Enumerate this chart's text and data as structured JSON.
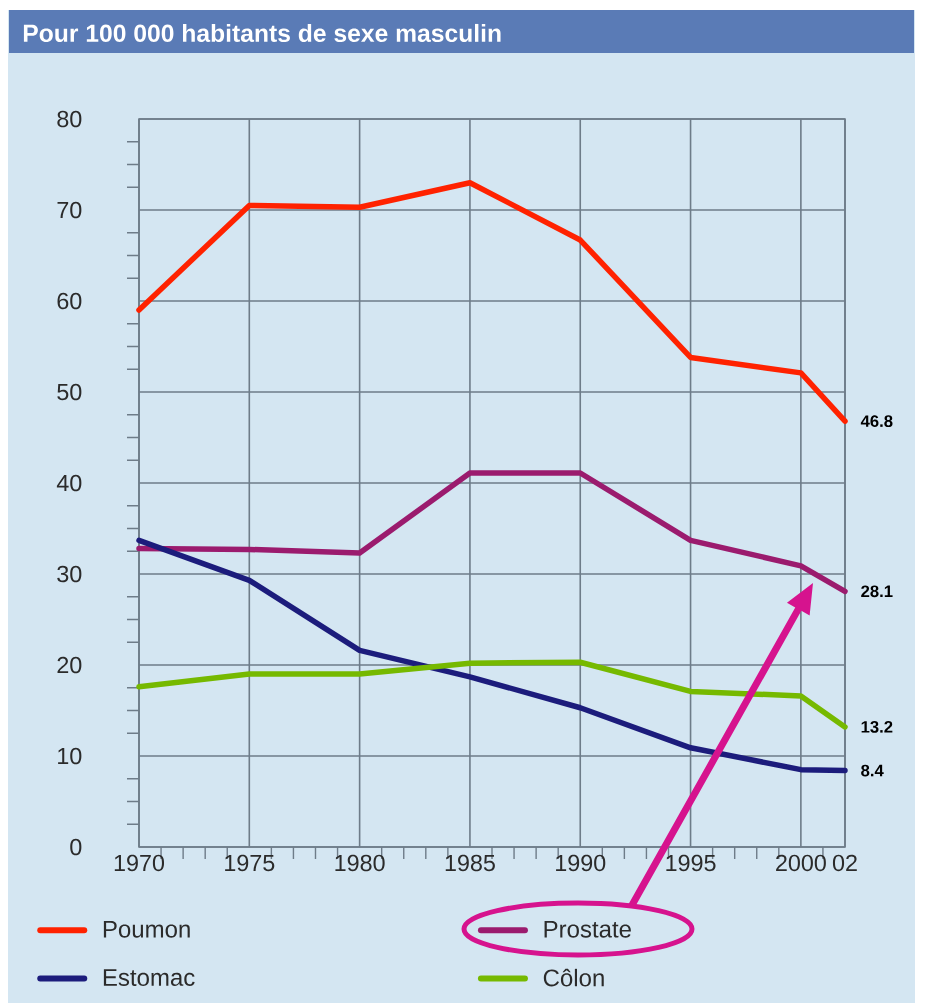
{
  "chart_data": {
    "type": "line",
    "title": "Pour 100 000 habitants de sexe masculin",
    "x": [
      1970,
      1975,
      1980,
      1985,
      1990,
      1995,
      2000,
      2002
    ],
    "series": [
      {
        "name": "Poumon",
        "color": "#ff2200",
        "values": [
          59,
          70.5,
          70.3,
          73,
          66.7,
          53.8,
          52.1,
          46.8
        ],
        "value_labels": [
          null,
          null,
          null,
          null,
          null,
          null,
          null,
          "46.8"
        ]
      },
      {
        "name": "Prostate",
        "color": "#9b1b6e",
        "values": [
          32.8,
          32.7,
          32.3,
          41.1,
          41.1,
          33.7,
          30.9,
          28.1
        ],
        "value_labels": [
          null,
          null,
          null,
          null,
          null,
          null,
          null,
          "28.1"
        ]
      },
      {
        "name": "Estomac",
        "color": "#1c1c7c",
        "values": [
          33.7,
          29.3,
          21.6,
          18.7,
          15.3,
          10.9,
          8.5,
          8.4
        ],
        "value_labels": [
          null,
          null,
          null,
          null,
          null,
          null,
          null,
          "8.4"
        ]
      },
      {
        "name": "Côlon",
        "color": "#76b900",
        "values": [
          17.6,
          19,
          19,
          20.2,
          20.3,
          17.1,
          16.6,
          13.2
        ],
        "value_labels": [
          null,
          null,
          null,
          null,
          null,
          null,
          null,
          "13.2"
        ]
      }
    ],
    "xlim": [
      1970,
      2002
    ],
    "xticks": [
      1970,
      1975,
      1980,
      1985,
      1990,
      1995,
      2000,
      {
        "value": 2002,
        "label": "02"
      }
    ],
    "ylim": [
      0,
      80
    ],
    "yticks": [
      0,
      10,
      20,
      30,
      40,
      50,
      60,
      70,
      80
    ],
    "grid": true,
    "legend": "bottom",
    "line_style": "solid"
  }
}
